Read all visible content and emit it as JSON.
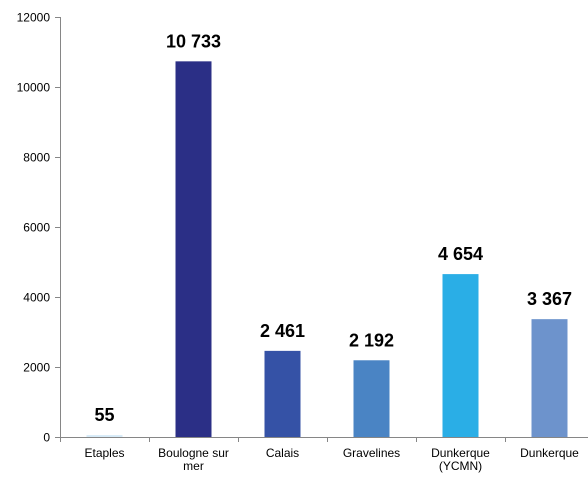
{
  "chart_data": {
    "type": "bar",
    "categories": [
      [
        "Etaples"
      ],
      [
        "Boulogne sur",
        "mer"
      ],
      [
        "Calais"
      ],
      [
        "Gravelines"
      ],
      [
        "Dunkerque",
        "(YCMN)"
      ],
      [
        "Dunkerque"
      ]
    ],
    "values": [
      55,
      10733,
      2461,
      2192,
      4654,
      3367
    ],
    "data_labels": [
      "55",
      "10 733",
      "2 461",
      "2 192",
      "4 654",
      "3 367"
    ],
    "colors": [
      "#d6eaf7",
      "#2b2f86",
      "#3552a6",
      "#4a84c4",
      "#2aaee6",
      "#6d93cc"
    ],
    "ylim": [
      0,
      12000
    ],
    "yticks": [
      0,
      2000,
      4000,
      6000,
      8000,
      10000,
      12000
    ],
    "grid": false,
    "legend": "none",
    "title": "",
    "xlabel": "",
    "ylabel": ""
  }
}
